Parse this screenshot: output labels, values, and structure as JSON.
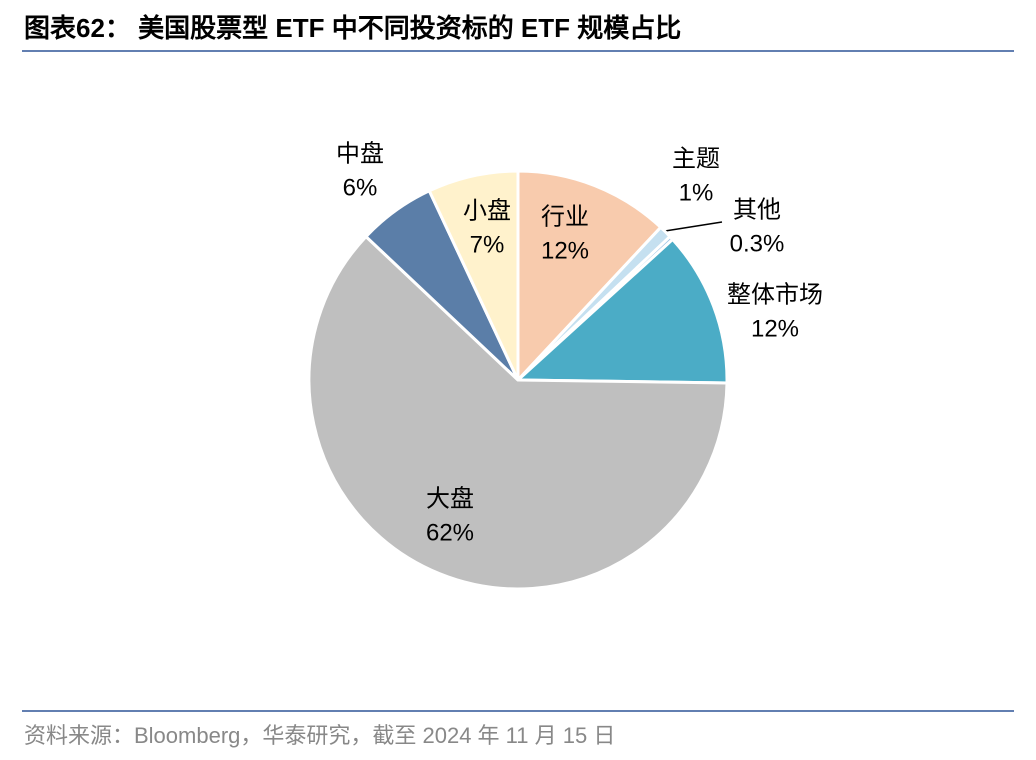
{
  "chart_data": {
    "type": "pie",
    "title": "图表62： 美国股票型 ETF 中不同投资标的 ETF 规模占比",
    "source": "资料来源：Bloomberg，华泰研究，截至 2024 年 11 月 15 日",
    "categories": [
      "行业",
      "主题",
      "其他",
      "整体市场",
      "大盘",
      "中盘",
      "小盘"
    ],
    "values": [
      12,
      1,
      0.3,
      12,
      62,
      6,
      7
    ],
    "value_labels": [
      "12%",
      "1%",
      "0.3%",
      "12%",
      "62%",
      "6%",
      "7%"
    ],
    "colors": [
      "#f8cbad",
      "#c5e0f0",
      "#9dc3e6",
      "#4bacc6",
      "#bfbfbf",
      "#5b7ea8",
      "#fff2cc"
    ]
  }
}
